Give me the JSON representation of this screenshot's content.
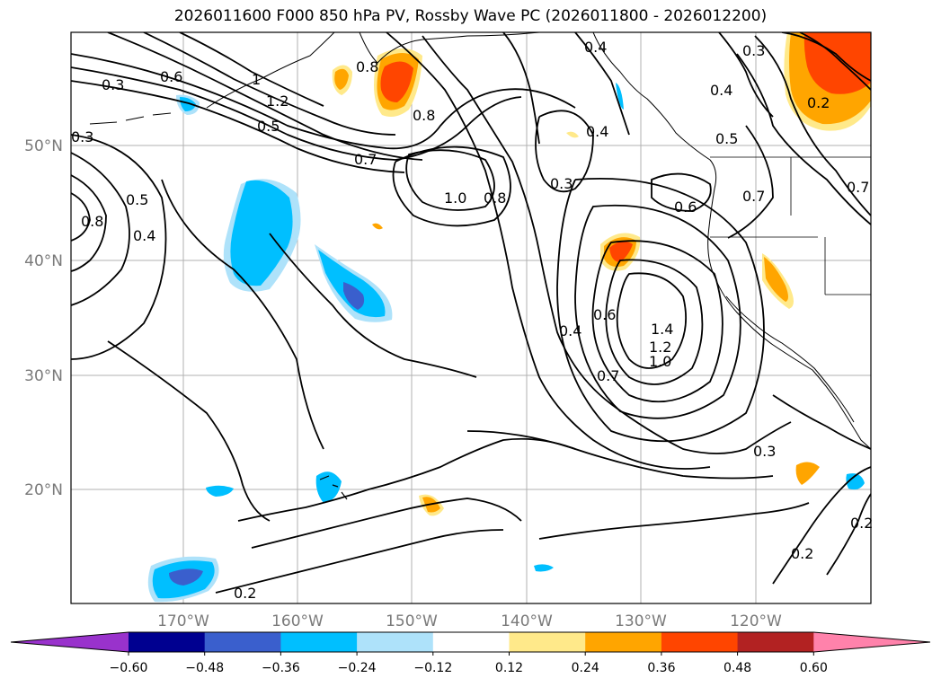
{
  "title": "2026011600 F000 850 hPa PV, Rossby Wave PC (2026011800 - 2026012200)",
  "lat_ticks": [
    "50°N",
    "40°N",
    "30°N",
    "20°N"
  ],
  "lon_ticks": [
    "170°W",
    "160°W",
    "150°W",
    "140°W",
    "130°W",
    "120°W"
  ],
  "colorbar": {
    "labels": [
      "−0.60",
      "−0.48",
      "−0.36",
      "−0.24",
      "−0.12",
      "0.12",
      "0.24",
      "0.36",
      "0.48",
      "0.60"
    ],
    "colors": [
      "#9932cc",
      "#000090",
      "#3a5fcd",
      "#00bfff",
      "#aee2fa",
      "#ffffff",
      "#ffe98a",
      "#ffa500",
      "#ff4500",
      "#b22222",
      "#ff82ab"
    ]
  },
  "contour_labels": [
    "0.3",
    "0.6",
    "1",
    "1.2",
    "0.5",
    "0.7",
    "0.8",
    "1.0",
    "0.8",
    "0.4",
    "0.3",
    "0.6",
    "0.7",
    "0.4",
    "0.6",
    "1.4",
    "1.2",
    "1.0",
    "0.7",
    "0.3",
    "0.2",
    "0.2",
    "0.2",
    "0.8",
    "0.4",
    "0.3",
    "0.5",
    "0.4",
    "0.4",
    "0.3",
    "0.2",
    "0.5",
    "0.7",
    "0.8"
  ]
}
